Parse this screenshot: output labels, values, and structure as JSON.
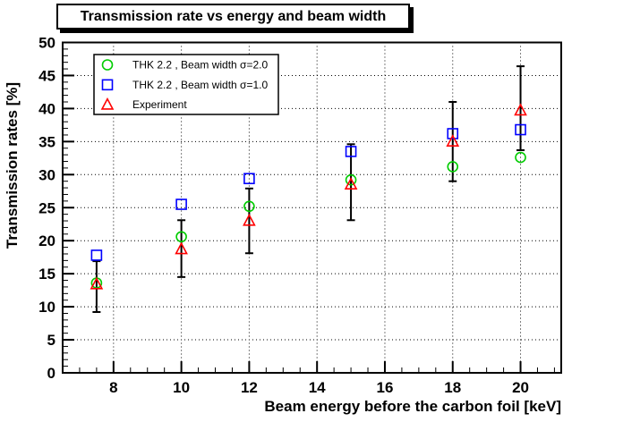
{
  "title_box": {
    "text": "Transmission rate vs energy and beam width"
  },
  "chart_data": {
    "type": "scatter",
    "title": "Transmission rate vs energy and beam width",
    "xlabel": "Beam energy before the carbon foil [keV]",
    "ylabel": "Transmission rates [%]",
    "xlim": [
      6.5,
      21.2
    ],
    "ylim": [
      0,
      50
    ],
    "x_major_ticks": [
      8,
      10,
      12,
      14,
      16,
      18,
      20
    ],
    "x_minor_step": 0.5,
    "y_major_ticks": [
      0,
      5,
      10,
      15,
      20,
      25,
      30,
      35,
      40,
      45,
      50
    ],
    "y_minor_step": 1,
    "grid": "dotted-lines-at-major-ticks",
    "legend_position": "top-left",
    "frame_color": "#000000",
    "background_color": "#ffffff",
    "x": [
      7.5,
      10,
      12,
      15,
      18,
      20
    ],
    "series": [
      {
        "name": "THK 2.2 , Beam width σ=2.0",
        "marker": "circle",
        "color": "#00CC00",
        "values": [
          13.6,
          20.6,
          25.2,
          29.2,
          31.2,
          32.6
        ]
      },
      {
        "name": "THK 2.2 , Beam width σ=1.0",
        "marker": "square",
        "color": "#0000FF",
        "values": [
          17.8,
          25.5,
          29.4,
          33.5,
          36.2,
          36.8
        ]
      },
      {
        "name": "Experiment",
        "marker": "triangle",
        "color": "#FF0000",
        "values": [
          13.4,
          18.7,
          23.0,
          28.5,
          35.0,
          39.7
        ],
        "yerr_plus": [
          3.5,
          4.4,
          4.9,
          6.1,
          6.0,
          6.7
        ],
        "yerr_minus": [
          4.2,
          4.2,
          4.9,
          5.4,
          6.0,
          6.0
        ],
        "error_color": "#000000"
      }
    ]
  }
}
